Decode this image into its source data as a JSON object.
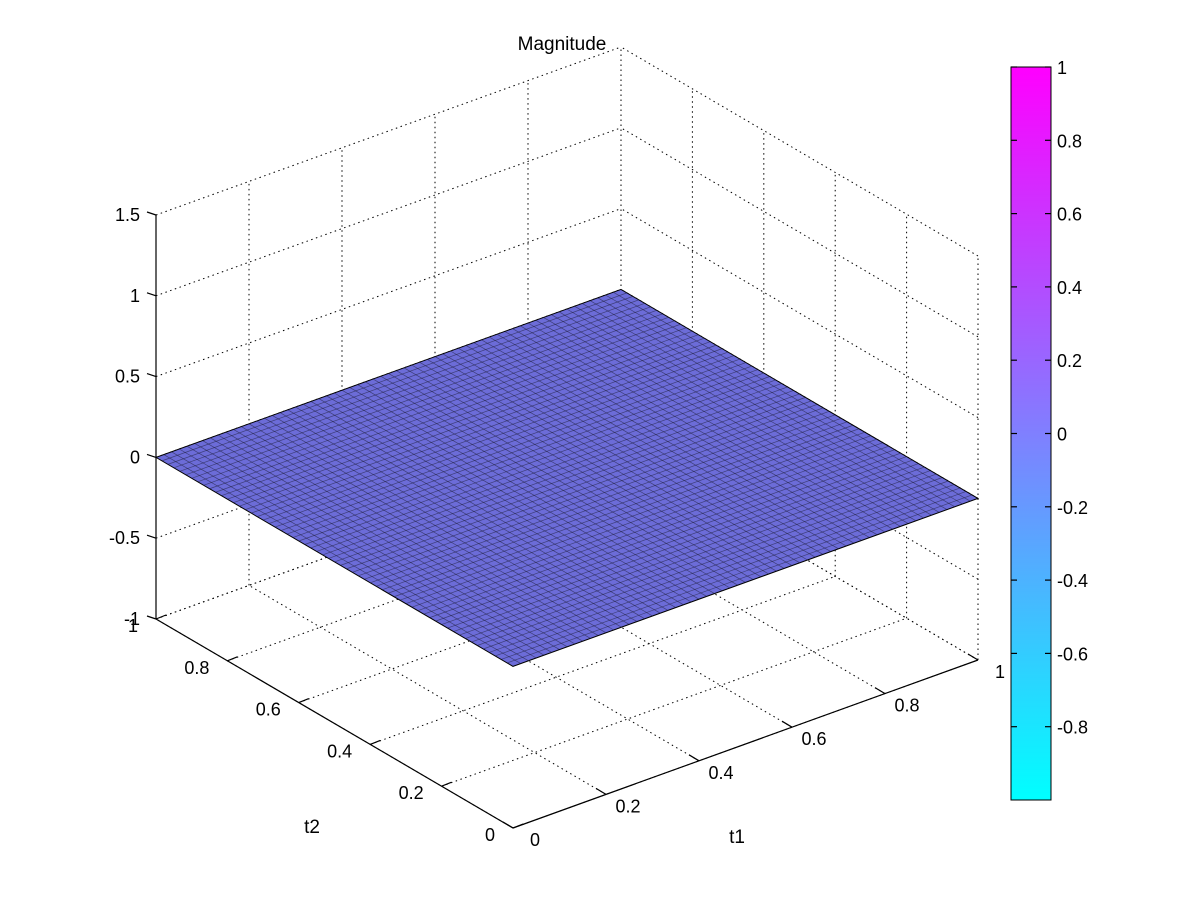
{
  "chart_data": {
    "type": "surface",
    "title": "Magnitude",
    "xlabel": "t1",
    "ylabel": "t2",
    "zlabel": "",
    "xlim": [
      0,
      1
    ],
    "ylim": [
      0,
      1
    ],
    "zlim": [
      -1,
      1.5
    ],
    "x_ticks": [
      "0",
      "0.2",
      "0.4",
      "0.6",
      "0.8",
      "1"
    ],
    "y_ticks": [
      "0",
      "0.2",
      "0.4",
      "0.6",
      "0.8",
      "1"
    ],
    "z_ticks": [
      "-1",
      "-0.5",
      "0",
      "0.5",
      "1",
      "1.5"
    ],
    "grid": true,
    "surface": {
      "description_value": 0,
      "x": [
        0,
        1
      ],
      "y": [
        0,
        1
      ],
      "z": [
        [
          0,
          0
        ],
        [
          0,
          0
        ]
      ],
      "face_color": "#6c6cd8",
      "edge_color": "#000000"
    },
    "colorbar": {
      "colormap": "cool",
      "range": [
        -1,
        1
      ],
      "ticks": [
        "-0.8",
        "-0.6",
        "-0.4",
        "-0.2",
        "0",
        "0.2",
        "0.4",
        "0.6",
        "0.8",
        "1"
      ],
      "color_low": "#00ffff",
      "color_high": "#ff00ff"
    }
  }
}
